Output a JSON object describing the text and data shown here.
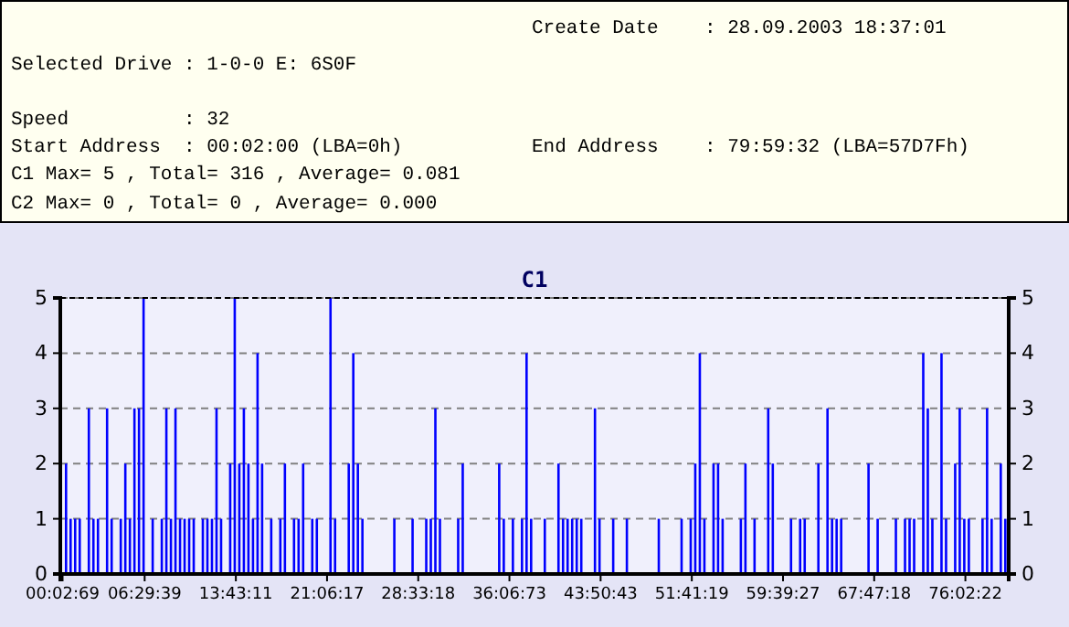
{
  "chart_data": {
    "type": "bar",
    "title": "C1",
    "annotations": [
      "Create Date    : 28.09.2003 18:37:01",
      "Selected Drive : 1-0-0 E: 6S0F",
      "Speed          : 32",
      "Start Address  : 00:02:00 (LBA=0h)",
      "End Address    : 79:59:32 (LBA=57D7Fh)",
      "C1 Max= 5 , Total= 316 , Average= 0.081",
      "C2 Max= 0 , Total= 0 , Average= 0.000"
    ],
    "categories": [
      "00:02:69",
      null,
      null,
      null,
      null,
      null,
      null,
      null,
      null,
      null,
      null,
      null,
      null,
      null,
      null,
      null,
      null,
      null,
      "06:29:39",
      null,
      null,
      null,
      null,
      null,
      null,
      null,
      null,
      null,
      null,
      null,
      null,
      null,
      null,
      null,
      null,
      null,
      null,
      null,
      "13:43:11",
      null,
      null,
      null,
      null,
      null,
      null,
      null,
      null,
      null,
      null,
      null,
      null,
      null,
      null,
      null,
      null,
      null,
      null,
      null,
      "21:06:17",
      null,
      null,
      null,
      null,
      null,
      null,
      null,
      null,
      null,
      null,
      null,
      null,
      null,
      null,
      null,
      null,
      null,
      null,
      null,
      "28:33:18",
      null,
      null,
      null,
      null,
      null,
      null,
      null,
      null,
      null,
      null,
      null,
      null,
      null,
      null,
      null,
      null,
      null,
      null,
      null,
      "36:06:73",
      null,
      null,
      null,
      null,
      null,
      null,
      null,
      null,
      null,
      null,
      null,
      null,
      null,
      null,
      null,
      null,
      null,
      null,
      null,
      "43:50:43",
      null,
      null,
      null,
      null,
      null,
      null,
      null,
      null,
      null,
      null,
      null,
      null,
      null,
      null,
      null,
      null,
      null,
      null,
      null,
      "51:41:19",
      null,
      null,
      null,
      null,
      null,
      null,
      null,
      null,
      null,
      null,
      null,
      null,
      null,
      null,
      null,
      null,
      null,
      null,
      null,
      "59:39:27",
      null,
      null,
      null,
      null,
      null,
      null,
      null,
      null,
      null,
      null,
      null,
      null,
      null,
      null,
      null,
      null,
      null,
      null,
      null,
      "67:47:18",
      null,
      null,
      null,
      null,
      null,
      null,
      null,
      null,
      null,
      null,
      null,
      null,
      null,
      null,
      null,
      null,
      null,
      null,
      null,
      "76:02:22",
      null,
      null,
      null,
      null,
      null,
      null,
      null,
      null,
      null
    ],
    "values": [
      0,
      2,
      1,
      1,
      1,
      0,
      3,
      1,
      1,
      0,
      3,
      1,
      0,
      1,
      2,
      1,
      3,
      3,
      5,
      0,
      1,
      0,
      1,
      3,
      1,
      3,
      1,
      1,
      1,
      1,
      0,
      1,
      1,
      1,
      3,
      1,
      0,
      2,
      5,
      2,
      3,
      2,
      1,
      4,
      2,
      0,
      1,
      0,
      1,
      2,
      0,
      1,
      1,
      2,
      0,
      1,
      1,
      0,
      0,
      5,
      1,
      0,
      0,
      2,
      4,
      2,
      1,
      0,
      0,
      0,
      0,
      0,
      0,
      1,
      0,
      0,
      0,
      1,
      0,
      0,
      1,
      1,
      3,
      1,
      0,
      0,
      0,
      1,
      2,
      0,
      0,
      0,
      0,
      0,
      0,
      0,
      2,
      1,
      0,
      1,
      0,
      1,
      4,
      1,
      0,
      0,
      1,
      0,
      0,
      2,
      1,
      1,
      1,
      1,
      1,
      0,
      0,
      3,
      1,
      0,
      0,
      1,
      0,
      0,
      1,
      0,
      0,
      0,
      0,
      0,
      0,
      1,
      0,
      0,
      0,
      0,
      1,
      0,
      1,
      2,
      4,
      1,
      0,
      2,
      2,
      1,
      0,
      0,
      0,
      1,
      2,
      0,
      1,
      0,
      0,
      3,
      2,
      0,
      0,
      0,
      1,
      0,
      1,
      1,
      0,
      0,
      2,
      0,
      3,
      1,
      1,
      1,
      0,
      0,
      0,
      0,
      0,
      2,
      0,
      1,
      0,
      0,
      0,
      1,
      0,
      1,
      1,
      1,
      0,
      4,
      3,
      1,
      0,
      4,
      1,
      0,
      2,
      3,
      1,
      1,
      0,
      0,
      1,
      3,
      1,
      0,
      2,
      1
    ],
    "color": "#0000ff",
    "ylim": [
      0,
      5
    ],
    "yticks": [
      0,
      1,
      2,
      3,
      4,
      5
    ],
    "y2lim": [
      0,
      5
    ],
    "y2ticks": [
      0,
      1,
      2,
      3,
      4,
      5
    ],
    "grid": "y"
  }
}
